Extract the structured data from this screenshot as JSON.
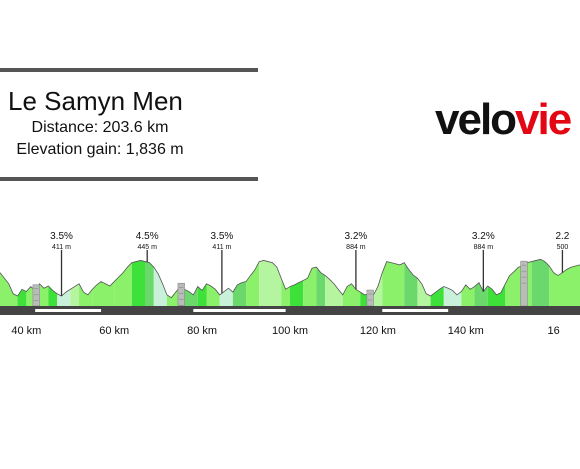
{
  "header": {
    "title": "Le Samyn Men",
    "distance": "Distance: 203.6 km",
    "elevation_gain": "Elevation gain: 1,836 m"
  },
  "logo": {
    "part1": "velo",
    "part2": "vie"
  },
  "colors": {
    "axis_bar": "#444444",
    "axis_label": "#111111",
    "profile_outline": "#555555",
    "fills": [
      "#8bf06a",
      "#3ee03a",
      "#b6f5a0",
      "#c9f0d8",
      "#6ad86a"
    ],
    "cobble": "#bbbbbb"
  },
  "chart_data": {
    "type": "area",
    "xlim": [
      34,
      166
    ],
    "ylim": [
      0,
      90
    ],
    "x_ticks": [
      {
        "value": 40,
        "label": "40 km"
      },
      {
        "value": 60,
        "label": "60 km"
      },
      {
        "value": 80,
        "label": "80 km"
      },
      {
        "value": 100,
        "label": "100 km"
      },
      {
        "value": 120,
        "label": "120 km"
      },
      {
        "value": 140,
        "label": "140 km"
      },
      {
        "value": 160,
        "label": "16"
      }
    ],
    "profile": {
      "x": [
        34,
        36,
        37,
        38,
        39,
        40,
        41,
        42,
        43,
        44,
        45,
        46,
        47,
        48,
        49,
        50,
        51,
        52,
        53,
        54,
        55,
        56,
        57,
        58,
        59,
        60,
        61,
        62,
        63,
        64,
        65,
        66,
        67,
        68,
        69,
        70,
        71,
        72,
        73,
        74,
        75,
        76,
        77,
        78,
        79,
        80,
        81,
        82,
        83,
        84,
        85,
        86,
        87,
        88,
        89,
        90,
        91,
        92,
        93,
        94,
        95,
        96,
        97,
        98,
        99,
        100,
        101,
        102,
        103,
        104,
        105,
        106,
        107,
        108,
        109,
        110,
        111,
        112,
        113,
        114,
        115,
        116,
        117,
        118,
        119,
        120,
        121,
        122,
        123,
        124,
        125,
        126,
        127,
        128,
        129,
        130,
        131,
        132,
        133,
        134,
        135,
        136,
        137,
        138,
        139,
        140,
        141,
        142,
        143,
        144,
        145,
        146,
        147,
        148,
        149,
        150,
        151,
        152,
        153,
        154,
        155,
        156,
        157,
        158,
        159,
        160,
        161,
        162,
        163,
        164,
        165,
        166
      ],
      "y": [
        60,
        40,
        22,
        18,
        30,
        26,
        35,
        28,
        40,
        32,
        36,
        28,
        22,
        18,
        25,
        30,
        35,
        40,
        25,
        20,
        30,
        38,
        44,
        40,
        36,
        44,
        52,
        60,
        70,
        78,
        80,
        82,
        80,
        78,
        70,
        58,
        40,
        20,
        15,
        25,
        35,
        30,
        26,
        20,
        35,
        28,
        40,
        36,
        30,
        20,
        26,
        32,
        25,
        38,
        42,
        44,
        55,
        65,
        80,
        82,
        80,
        78,
        70,
        50,
        30,
        35,
        38,
        42,
        46,
        50,
        68,
        70,
        60,
        55,
        48,
        40,
        30,
        20,
        35,
        40,
        30,
        25,
        20,
        22,
        20,
        35,
        60,
        80,
        78,
        76,
        74,
        78,
        66,
        56,
        50,
        40,
        22,
        18,
        24,
        30,
        35,
        32,
        28,
        20,
        26,
        38,
        30,
        35,
        42,
        26,
        36,
        30,
        20,
        24,
        40,
        55,
        62,
        70,
        72,
        78,
        80,
        82,
        84,
        80,
        72,
        60,
        55,
        60,
        66,
        70,
        72,
        74
      ]
    },
    "fill_segments": [
      {
        "from": 34,
        "to": 38,
        "color": 0
      },
      {
        "from": 38,
        "to": 40,
        "color": 1
      },
      {
        "from": 40,
        "to": 45,
        "color": 0
      },
      {
        "from": 45,
        "to": 47,
        "color": 1
      },
      {
        "from": 47,
        "to": 50,
        "color": 3
      },
      {
        "from": 50,
        "to": 52,
        "color": 2
      },
      {
        "from": 52,
        "to": 55,
        "color": 0
      },
      {
        "from": 55,
        "to": 60,
        "color": 0
      },
      {
        "from": 60,
        "to": 64,
        "color": 0
      },
      {
        "from": 64,
        "to": 67,
        "color": 1
      },
      {
        "from": 67,
        "to": 69,
        "color": 4
      },
      {
        "from": 69,
        "to": 72,
        "color": 3
      },
      {
        "from": 72,
        "to": 75,
        "color": 0
      },
      {
        "from": 75,
        "to": 79,
        "color": 4
      },
      {
        "from": 79,
        "to": 81,
        "color": 1
      },
      {
        "from": 81,
        "to": 84,
        "color": 0
      },
      {
        "from": 84,
        "to": 87,
        "color": 3
      },
      {
        "from": 87,
        "to": 90,
        "color": 4
      },
      {
        "from": 90,
        "to": 93,
        "color": 0
      },
      {
        "from": 93,
        "to": 98,
        "color": 2
      },
      {
        "from": 98,
        "to": 100,
        "color": 0
      },
      {
        "from": 100,
        "to": 103,
        "color": 1
      },
      {
        "from": 103,
        "to": 106,
        "color": 0
      },
      {
        "from": 106,
        "to": 108,
        "color": 4
      },
      {
        "from": 108,
        "to": 112,
        "color": 2
      },
      {
        "from": 112,
        "to": 116,
        "color": 0
      },
      {
        "from": 116,
        "to": 118,
        "color": 1
      },
      {
        "from": 118,
        "to": 121,
        "color": 2
      },
      {
        "from": 121,
        "to": 126,
        "color": 0
      },
      {
        "from": 126,
        "to": 129,
        "color": 4
      },
      {
        "from": 129,
        "to": 132,
        "color": 2
      },
      {
        "from": 132,
        "to": 135,
        "color": 1
      },
      {
        "from": 135,
        "to": 139,
        "color": 3
      },
      {
        "from": 139,
        "to": 142,
        "color": 0
      },
      {
        "from": 142,
        "to": 145,
        "color": 4
      },
      {
        "from": 145,
        "to": 149,
        "color": 1
      },
      {
        "from": 149,
        "to": 155,
        "color": 0
      },
      {
        "from": 155,
        "to": 159,
        "color": 4
      },
      {
        "from": 159,
        "to": 166,
        "color": 0
      }
    ],
    "cobble_sectors": [
      {
        "from": 41.5,
        "to": 43.0
      },
      {
        "from": 74.5,
        "to": 76.0
      },
      {
        "from": 117.5,
        "to": 119.0
      },
      {
        "from": 152.5,
        "to": 154.0
      }
    ],
    "climbs": [
      {
        "x": 48,
        "gradient": "3.5%",
        "elevation": "411 m"
      },
      {
        "x": 67.5,
        "gradient": "4.5%",
        "elevation": "445 m"
      },
      {
        "x": 84.5,
        "gradient": "3.5%",
        "elevation": "411 m"
      },
      {
        "x": 115,
        "gradient": "3.2%",
        "elevation": "884 m"
      },
      {
        "x": 144,
        "gradient": "3.2%",
        "elevation": "884 m"
      },
      {
        "x": 162,
        "gradient": "2.2",
        "elevation": "500"
      }
    ],
    "axis_markers": [
      {
        "from": 42,
        "to": 57
      },
      {
        "from": 78,
        "to": 99
      },
      {
        "from": 121,
        "to": 136
      }
    ]
  }
}
